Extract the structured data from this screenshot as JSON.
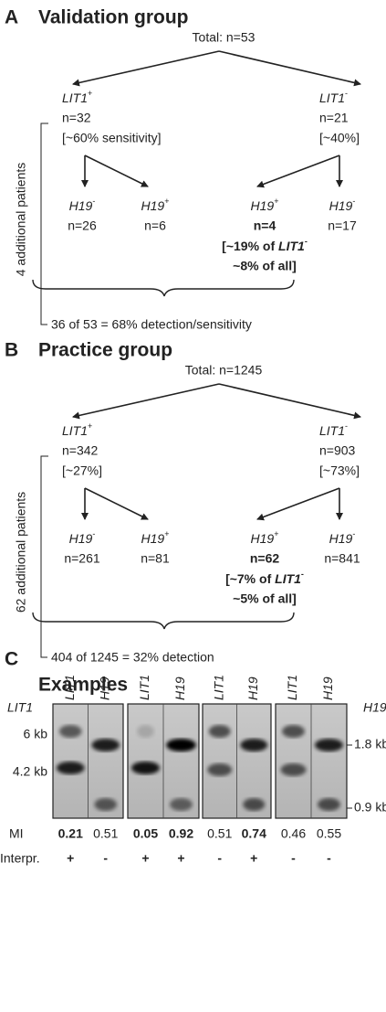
{
  "panel_a": {
    "letter": "A",
    "title": "Validation group",
    "total": "Total: n=53",
    "left": {
      "gene": "LIT1",
      "sign": "+",
      "n": "n=32",
      "note": "[~60% sensitivity]"
    },
    "right": {
      "gene": "LIT1",
      "sign": "-",
      "n": "n=21",
      "note": "[~40%]"
    },
    "leaves": [
      {
        "gene": "H19",
        "sign": "-",
        "n": "n=26"
      },
      {
        "gene": "H19",
        "sign": "+",
        "n": "n=6"
      },
      {
        "gene": "H19",
        "sign": "+",
        "n": "n=4"
      },
      {
        "gene": "H19",
        "sign": "-",
        "n": "n=17"
      }
    ],
    "highlight": {
      "prefix": "[~19% of ",
      "gene": "LIT1",
      "sign": "-",
      "line2": "~8% of all]"
    },
    "side_label": "4 additional patients",
    "summary": "36 of 53 = 68% detection/sensitivity"
  },
  "panel_b": {
    "letter": "B",
    "title": "Practice group",
    "total": "Total: n=1245",
    "left": {
      "gene": "LIT1",
      "sign": "+",
      "n": "n=342",
      "note": "[~27%]"
    },
    "right": {
      "gene": "LIT1",
      "sign": "-",
      "n": "n=903",
      "note": "[~73%]"
    },
    "leaves": [
      {
        "gene": "H19",
        "sign": "-",
        "n": "n=261"
      },
      {
        "gene": "H19",
        "sign": "+",
        "n": "n=81"
      },
      {
        "gene": "H19",
        "sign": "+",
        "n": "n=62"
      },
      {
        "gene": "H19",
        "sign": "-",
        "n": "n=841"
      }
    ],
    "highlight": {
      "prefix": "[~7% of ",
      "gene": "LIT1",
      "sign": "-",
      "line2": "~5% of all]"
    },
    "side_label": "62 additional patients",
    "summary": "404 of 1245 = 32% detection"
  },
  "panel_c": {
    "letter": "C",
    "title": "Examples",
    "row_left": "LIT1",
    "row_right": "H19",
    "lanes": [
      "LIT1",
      "H19",
      "LIT1",
      "H19",
      "LIT1",
      "H19",
      "LIT1",
      "H19"
    ],
    "left_sizes": [
      "6 kb",
      "4.2 kb"
    ],
    "right_sizes": [
      "1.8 kb",
      "0.9 kb"
    ],
    "mi_label": "MI",
    "mi": [
      "0.21",
      "0.51",
      "0.05",
      "0.92",
      "0.51",
      "0.74",
      "0.46",
      "0.55"
    ],
    "mi_bold": [
      true,
      false,
      true,
      true,
      false,
      true,
      false,
      false
    ],
    "interp_label": "Interpr.",
    "interp": [
      "+",
      "-",
      "+",
      "+",
      "-",
      "+",
      "-",
      "-"
    ]
  }
}
